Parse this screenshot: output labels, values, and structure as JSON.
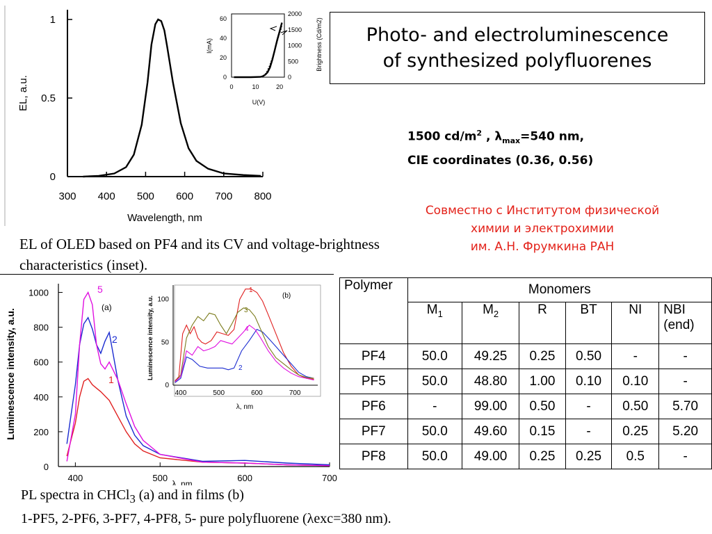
{
  "title": {
    "line1": "Photo- and electroluminescence",
    "line2": "of synthesized polyfluorenes"
  },
  "specs": {
    "line1_pre": "1500 cd/m",
    "line1_sup": "2",
    "line1_mid": " , ",
    "lambda": "λ",
    "max_sub": "max",
    "line1_post": "=540 nm,",
    "line2": "CIE coordinates (0.36, 0.56)"
  },
  "collab": {
    "line1": "Совместно с Институтом физической",
    "line2": "химии и электрохимии",
    "line3": "им. А.Н. Фрумкина РАН"
  },
  "caption_el": "EL of OLED based on PF4 and its CV and voltage-brightness characteristics (inset).",
  "caption_pl": {
    "line1_pre": "PL spectra in CHCl",
    "line1_sub": "3",
    "line1_post": " (a) and in films (b)",
    "line2": "1-PF5, 2-PF6, 3-PF7, 4-PF8, 5- pure polyfluorene (λexc=380 nm)."
  },
  "table": {
    "h_polymer": "Polymer",
    "h_monomers": "Monomers",
    "sub_headers": [
      {
        "main": "M",
        "sub": "1"
      },
      {
        "main": "M",
        "sub": "2"
      },
      {
        "main": "R",
        "sub": ""
      },
      {
        "main": "BT",
        "sub": ""
      },
      {
        "main": "NI",
        "sub": ""
      },
      {
        "main": "NBI (end)",
        "sub": ""
      }
    ],
    "rows": [
      [
        "PF4",
        "50.0",
        "49.25",
        "0.25",
        "0.50",
        "-",
        "-"
      ],
      [
        "PF5",
        "50.0",
        "48.80",
        "1.00",
        "0.10",
        "0.10",
        "-"
      ],
      [
        "PF6",
        "-",
        "99.00",
        "0.50",
        "-",
        "0.50",
        "5.70"
      ],
      [
        "PF7",
        "50.0",
        "49.60",
        "0.15",
        "-",
        "0.25",
        "5.20"
      ],
      [
        "PF8",
        "50.0",
        "49.00",
        "0.25",
        "0.25",
        "0.5",
        "-"
      ]
    ]
  },
  "chart_data": [
    {
      "type": "line",
      "id": "el_main",
      "xlabel": "Wavelength, nm",
      "ylabel": "EL, a.u.",
      "xlim": [
        300,
        800
      ],
      "ylim": [
        0,
        1.0
      ],
      "xticks": [
        "300",
        "400",
        "500",
        "600",
        "700",
        "800"
      ],
      "yticks": [
        "0",
        "0.5",
        "1"
      ],
      "series": [
        {
          "color": "#000000",
          "x": [
            340,
            380,
            420,
            450,
            470,
            490,
            505,
            515,
            525,
            532,
            540,
            548,
            555,
            570,
            590,
            610,
            630,
            660,
            700,
            750,
            795
          ],
          "y": [
            0,
            0.005,
            0.02,
            0.06,
            0.14,
            0.33,
            0.6,
            0.84,
            0.97,
            1.0,
            0.99,
            0.93,
            0.83,
            0.6,
            0.34,
            0.18,
            0.1,
            0.05,
            0.02,
            0.01,
            0.005
          ]
        }
      ]
    },
    {
      "type": "line",
      "id": "el_inset",
      "xlabel": "U(V)",
      "ylabel": "I(mA)",
      "y2label": "Brightness (Cd/m2)",
      "xlim": [
        0,
        22
      ],
      "ylim": [
        0,
        65
      ],
      "y2lim": [
        0,
        2000
      ],
      "xticks": [
        "0",
        "10",
        "20"
      ],
      "yticks": [
        "0",
        "20",
        "40",
        "60"
      ],
      "y2ticks": [
        "0",
        "500",
        "1000",
        "1500",
        "2000"
      ],
      "series": [
        {
          "color": "#000000",
          "x": [
            1,
            8,
            12,
            13,
            14,
            15,
            16,
            17,
            18,
            19,
            20,
            21
          ],
          "y": [
            0,
            0,
            0.3,
            1,
            2.5,
            5,
            10,
            18,
            28,
            38,
            47,
            56
          ]
        },
        {
          "color": "#000000",
          "x": [
            12,
            13,
            14,
            15,
            16,
            17,
            18,
            19,
            20,
            21
          ],
          "y": [
            0,
            1,
            3,
            7,
            13,
            20,
            28,
            36,
            45,
            52
          ]
        }
      ]
    },
    {
      "type": "line",
      "id": "pl_a",
      "xlabel": "λ, nm",
      "ylabel": "Luminescence intensity, a.u.",
      "panel": "(a)",
      "xlim": [
        380,
        700
      ],
      "ylim": [
        0,
        1050
      ],
      "xticks": [
        "400",
        "500",
        "600",
        "700"
      ],
      "yticks": [
        "0",
        "200",
        "400",
        "600",
        "800",
        "1000"
      ],
      "series": [
        {
          "label": "1",
          "color": "#e02020",
          "x": [
            390,
            400,
            405,
            410,
            415,
            420,
            425,
            430,
            440,
            450,
            460,
            470,
            480,
            500,
            550,
            600,
            650,
            700
          ],
          "y": [
            60,
            250,
            400,
            490,
            505,
            470,
            450,
            430,
            380,
            290,
            200,
            130,
            90,
            50,
            25,
            20,
            10,
            5
          ]
        },
        {
          "label": "2",
          "color": "#1a2bd0",
          "x": [
            390,
            400,
            405,
            410,
            415,
            420,
            425,
            430,
            435,
            440,
            450,
            460,
            470,
            480,
            500,
            550,
            600,
            650,
            700
          ],
          "y": [
            130,
            470,
            700,
            820,
            855,
            790,
            700,
            650,
            720,
            770,
            500,
            290,
            180,
            120,
            70,
            30,
            35,
            20,
            10
          ]
        },
        {
          "label": "5",
          "color": "#e010e0",
          "x": [
            390,
            400,
            405,
            410,
            415,
            420,
            425,
            430,
            435,
            440,
            450,
            460,
            470,
            480,
            500,
            550,
            600,
            650,
            700
          ],
          "y": [
            30,
            300,
            700,
            960,
            1000,
            930,
            700,
            590,
            560,
            600,
            500,
            360,
            230,
            150,
            70,
            25,
            20,
            10,
            5
          ]
        }
      ]
    },
    {
      "type": "line",
      "id": "pl_b",
      "xlabel": "λ, nm",
      "ylabel": "Luminescence intensity, a.u.",
      "panel": "(b)",
      "xlim": [
        380,
        760
      ],
      "ylim": [
        0,
        115
      ],
      "xticks": [
        "400",
        "500",
        "600",
        "700"
      ],
      "yticks": [
        "0",
        "50",
        "100"
      ],
      "series": [
        {
          "label": "1",
          "color": "#e02020",
          "x": [
            385,
            395,
            405,
            415,
            425,
            435,
            445,
            455,
            465,
            480,
            495,
            510,
            525,
            540,
            555,
            570,
            585,
            600,
            615,
            630,
            650,
            670,
            690,
            710,
            730,
            750
          ],
          "y": [
            5,
            10,
            60,
            70,
            60,
            68,
            55,
            50,
            48,
            52,
            62,
            60,
            58,
            65,
            100,
            112,
            112,
            108,
            98,
            82,
            60,
            38,
            22,
            12,
            8,
            7
          ]
        },
        {
          "label": "2",
          "color": "#1a2bd0",
          "x": [
            385,
            400,
            415,
            430,
            450,
            470,
            490,
            510,
            525,
            540,
            560,
            580,
            600,
            615,
            630,
            650,
            670,
            690,
            710,
            730,
            750
          ],
          "y": [
            3,
            8,
            33,
            30,
            22,
            20,
            20,
            20,
            18,
            20,
            40,
            52,
            65,
            62,
            55,
            45,
            35,
            25,
            15,
            10,
            8
          ]
        },
        {
          "label": "3",
          "color": "#7a7a1a",
          "x": [
            385,
            400,
            415,
            430,
            445,
            460,
            475,
            490,
            505,
            520,
            535,
            550,
            565,
            580,
            595,
            610,
            630,
            650,
            670,
            690,
            710,
            730,
            750
          ],
          "y": [
            4,
            12,
            55,
            70,
            80,
            75,
            84,
            82,
            70,
            60,
            72,
            85,
            90,
            88,
            80,
            65,
            45,
            32,
            25,
            18,
            12,
            9,
            8
          ]
        },
        {
          "label": "4",
          "color": "#e010e0",
          "x": [
            385,
            400,
            415,
            430,
            445,
            460,
            475,
            490,
            505,
            520,
            535,
            550,
            565,
            580,
            595,
            610,
            630,
            650,
            670,
            690,
            710,
            730,
            750
          ],
          "y": [
            4,
            10,
            40,
            35,
            45,
            40,
            42,
            45,
            52,
            50,
            48,
            55,
            62,
            70,
            65,
            55,
            40,
            28,
            20,
            14,
            10,
            8,
            6
          ]
        }
      ]
    }
  ]
}
